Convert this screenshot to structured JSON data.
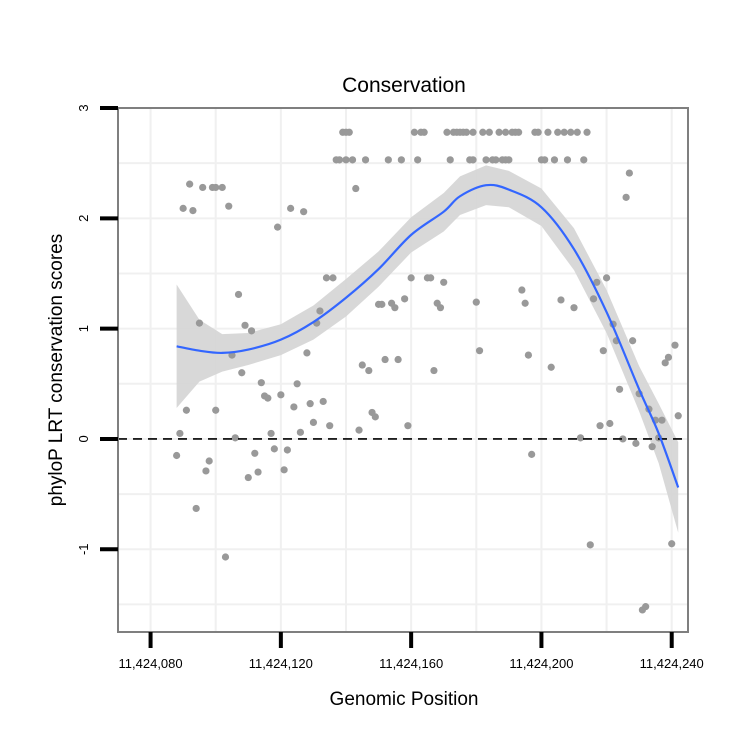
{
  "chart_data": {
    "type": "scatter",
    "title": "Conservation",
    "xlabel": "Genomic Position",
    "ylabel": "phyloP LRT conservation scores",
    "xlim": [
      11424070,
      11424245
    ],
    "ylim": [
      -1.75,
      3.0
    ],
    "x_ticks": [
      11424080,
      11424120,
      11424160,
      11424200,
      11424240
    ],
    "x_tick_labels": [
      "11,424,080",
      "11,424,120",
      "11,424,160",
      "11,424,200",
      "11,424,240"
    ],
    "y_ticks": [
      -1,
      0,
      1,
      2,
      3
    ],
    "y_tick_labels": [
      "-1",
      "0",
      "1",
      "2",
      "3"
    ],
    "grid": true,
    "reference_line": {
      "y": 0,
      "style": "dashed"
    },
    "colors": {
      "points": "#999999",
      "smooth_line": "#3366ff",
      "ribbon": "#d4d4d4",
      "panel_border": "#7f7f7f",
      "grid": "#f0f0f0",
      "reference": "#000000"
    },
    "points": [
      {
        "x": 11424088,
        "y": -0.15
      },
      {
        "x": 11424089,
        "y": 0.05
      },
      {
        "x": 11424090,
        "y": 2.09
      },
      {
        "x": 11424091,
        "y": 0.26
      },
      {
        "x": 11424092,
        "y": 2.31
      },
      {
        "x": 11424093,
        "y": 2.07
      },
      {
        "x": 11424094,
        "y": -0.63
      },
      {
        "x": 11424095,
        "y": 1.05
      },
      {
        "x": 11424096,
        "y": 2.28
      },
      {
        "x": 11424097,
        "y": -0.29
      },
      {
        "x": 11424098,
        "y": -0.2
      },
      {
        "x": 11424099,
        "y": 2.28
      },
      {
        "x": 11424100,
        "y": 0.26
      },
      {
        "x": 11424100,
        "y": 2.28
      },
      {
        "x": 11424102,
        "y": 2.28
      },
      {
        "x": 11424103,
        "y": -1.07
      },
      {
        "x": 11424104,
        "y": 2.11
      },
      {
        "x": 11424105,
        "y": 0.76
      },
      {
        "x": 11424106,
        "y": 0.01
      },
      {
        "x": 11424107,
        "y": 1.31
      },
      {
        "x": 11424108,
        "y": 0.6
      },
      {
        "x": 11424109,
        "y": 1.03
      },
      {
        "x": 11424110,
        "y": -0.35
      },
      {
        "x": 11424111,
        "y": 0.98
      },
      {
        "x": 11424112,
        "y": -0.13
      },
      {
        "x": 11424113,
        "y": -0.3
      },
      {
        "x": 11424114,
        "y": 0.51
      },
      {
        "x": 11424115,
        "y": 0.39
      },
      {
        "x": 11424116,
        "y": 0.37
      },
      {
        "x": 11424117,
        "y": 0.05
      },
      {
        "x": 11424118,
        "y": -0.09
      },
      {
        "x": 11424119,
        "y": 1.92
      },
      {
        "x": 11424120,
        "y": 0.4
      },
      {
        "x": 11424121,
        "y": -0.28
      },
      {
        "x": 11424122,
        "y": -0.1
      },
      {
        "x": 11424123,
        "y": 2.09
      },
      {
        "x": 11424124,
        "y": 0.29
      },
      {
        "x": 11424125,
        "y": 0.5
      },
      {
        "x": 11424126,
        "y": 0.06
      },
      {
        "x": 11424127,
        "y": 2.06
      },
      {
        "x": 11424128,
        "y": 0.78
      },
      {
        "x": 11424129,
        "y": 0.32
      },
      {
        "x": 11424130,
        "y": 0.15
      },
      {
        "x": 11424131,
        "y": 1.05
      },
      {
        "x": 11424132,
        "y": 1.16
      },
      {
        "x": 11424133,
        "y": 0.34
      },
      {
        "x": 11424134,
        "y": 1.46
      },
      {
        "x": 11424135,
        "y": 0.12
      },
      {
        "x": 11424136,
        "y": 1.46
      },
      {
        "x": 11424137,
        "y": 2.53
      },
      {
        "x": 11424138,
        "y": 2.53
      },
      {
        "x": 11424139,
        "y": 2.78
      },
      {
        "x": 11424140,
        "y": 2.53
      },
      {
        "x": 11424140,
        "y": 2.78
      },
      {
        "x": 11424141,
        "y": 2.78
      },
      {
        "x": 11424142,
        "y": 2.53
      },
      {
        "x": 11424143,
        "y": 2.27
      },
      {
        "x": 11424144,
        "y": 0.08
      },
      {
        "x": 11424145,
        "y": 0.67
      },
      {
        "x": 11424146,
        "y": 2.53
      },
      {
        "x": 11424147,
        "y": 0.62
      },
      {
        "x": 11424148,
        "y": 0.24
      },
      {
        "x": 11424149,
        "y": 0.2
      },
      {
        "x": 11424150,
        "y": 1.22
      },
      {
        "x": 11424151,
        "y": 1.22
      },
      {
        "x": 11424152,
        "y": 0.72
      },
      {
        "x": 11424153,
        "y": 2.53
      },
      {
        "x": 11424154,
        "y": 1.23
      },
      {
        "x": 11424155,
        "y": 1.19
      },
      {
        "x": 11424156,
        "y": 0.72
      },
      {
        "x": 11424157,
        "y": 2.53
      },
      {
        "x": 11424158,
        "y": 1.27
      },
      {
        "x": 11424159,
        "y": 0.12
      },
      {
        "x": 11424160,
        "y": 1.46
      },
      {
        "x": 11424161,
        "y": 2.78
      },
      {
        "x": 11424162,
        "y": 2.53
      },
      {
        "x": 11424163,
        "y": 2.78
      },
      {
        "x": 11424164,
        "y": 2.78
      },
      {
        "x": 11424165,
        "y": 1.46
      },
      {
        "x": 11424166,
        "y": 1.46
      },
      {
        "x": 11424167,
        "y": 0.62
      },
      {
        "x": 11424168,
        "y": 1.23
      },
      {
        "x": 11424169,
        "y": 1.19
      },
      {
        "x": 11424170,
        "y": 1.42
      },
      {
        "x": 11424171,
        "y": 2.78
      },
      {
        "x": 11424172,
        "y": 2.53
      },
      {
        "x": 11424173,
        "y": 2.78
      },
      {
        "x": 11424174,
        "y": 2.78
      },
      {
        "x": 11424175,
        "y": 2.78
      },
      {
        "x": 11424176,
        "y": 2.78
      },
      {
        "x": 11424177,
        "y": 2.78
      },
      {
        "x": 11424178,
        "y": 2.53
      },
      {
        "x": 11424179,
        "y": 2.53
      },
      {
        "x": 11424179,
        "y": 2.78
      },
      {
        "x": 11424180,
        "y": 1.24
      },
      {
        "x": 11424181,
        "y": 0.8
      },
      {
        "x": 11424182,
        "y": 2.78
      },
      {
        "x": 11424183,
        "y": 2.53
      },
      {
        "x": 11424184,
        "y": 2.78
      },
      {
        "x": 11424185,
        "y": 2.53
      },
      {
        "x": 11424186,
        "y": 2.53
      },
      {
        "x": 11424187,
        "y": 2.78
      },
      {
        "x": 11424188,
        "y": 2.53
      },
      {
        "x": 11424189,
        "y": 2.78
      },
      {
        "x": 11424189,
        "y": 2.53
      },
      {
        "x": 11424190,
        "y": 2.53
      },
      {
        "x": 11424191,
        "y": 2.78
      },
      {
        "x": 11424192,
        "y": 2.78
      },
      {
        "x": 11424193,
        "y": 2.78
      },
      {
        "x": 11424194,
        "y": 1.35
      },
      {
        "x": 11424195,
        "y": 1.23
      },
      {
        "x": 11424196,
        "y": 0.76
      },
      {
        "x": 11424197,
        "y": -0.14
      },
      {
        "x": 11424198,
        "y": 2.78
      },
      {
        "x": 11424199,
        "y": 2.78
      },
      {
        "x": 11424200,
        "y": 2.53
      },
      {
        "x": 11424201,
        "y": 2.53
      },
      {
        "x": 11424202,
        "y": 2.78
      },
      {
        "x": 11424203,
        "y": 0.65
      },
      {
        "x": 11424204,
        "y": 2.53
      },
      {
        "x": 11424205,
        "y": 2.78
      },
      {
        "x": 11424206,
        "y": 1.26
      },
      {
        "x": 11424207,
        "y": 2.78
      },
      {
        "x": 11424208,
        "y": 2.53
      },
      {
        "x": 11424209,
        "y": 2.78
      },
      {
        "x": 11424210,
        "y": 1.19
      },
      {
        "x": 11424211,
        "y": 2.78
      },
      {
        "x": 11424212,
        "y": 0.01
      },
      {
        "x": 11424213,
        "y": 2.53
      },
      {
        "x": 11424214,
        "y": 2.78
      },
      {
        "x": 11424215,
        "y": -0.96
      },
      {
        "x": 11424216,
        "y": 1.27
      },
      {
        "x": 11424217,
        "y": 1.42
      },
      {
        "x": 11424218,
        "y": 0.12
      },
      {
        "x": 11424219,
        "y": 0.8
      },
      {
        "x": 11424220,
        "y": 1.46
      },
      {
        "x": 11424221,
        "y": 0.14
      },
      {
        "x": 11424222,
        "y": 1.04
      },
      {
        "x": 11424223,
        "y": 0.89
      },
      {
        "x": 11424224,
        "y": 0.45
      },
      {
        "x": 11424225,
        "y": 0.0
      },
      {
        "x": 11424226,
        "y": 2.19
      },
      {
        "x": 11424227,
        "y": 2.41
      },
      {
        "x": 11424228,
        "y": 0.89
      },
      {
        "x": 11424229,
        "y": -0.04
      },
      {
        "x": 11424230,
        "y": 0.41
      },
      {
        "x": 11424231,
        "y": -1.55
      },
      {
        "x": 11424232,
        "y": -1.52
      },
      {
        "x": 11424233,
        "y": 0.27
      },
      {
        "x": 11424234,
        "y": -0.07
      },
      {
        "x": 11424235,
        "y": 0.17
      },
      {
        "x": 11424236,
        "y": 0.01
      },
      {
        "x": 11424237,
        "y": 0.17
      },
      {
        "x": 11424238,
        "y": 0.69
      },
      {
        "x": 11424239,
        "y": 0.74
      },
      {
        "x": 11424240,
        "y": -0.95
      },
      {
        "x": 11424241,
        "y": 0.85
      },
      {
        "x": 11424242,
        "y": 0.21
      }
    ],
    "smooth_curve": [
      {
        "x": 11424088,
        "y": 0.84,
        "lo": 0.28,
        "hi": 1.4
      },
      {
        "x": 11424095,
        "y": 0.8,
        "lo": 0.52,
        "hi": 1.08
      },
      {
        "x": 11424102,
        "y": 0.78,
        "lo": 0.61,
        "hi": 0.95
      },
      {
        "x": 11424110,
        "y": 0.81,
        "lo": 0.67,
        "hi": 0.96
      },
      {
        "x": 11424120,
        "y": 0.9,
        "lo": 0.76,
        "hi": 1.04
      },
      {
        "x": 11424130,
        "y": 1.06,
        "lo": 0.9,
        "hi": 1.21
      },
      {
        "x": 11424140,
        "y": 1.28,
        "lo": 1.11,
        "hi": 1.45
      },
      {
        "x": 11424150,
        "y": 1.54,
        "lo": 1.38,
        "hi": 1.7
      },
      {
        "x": 11424160,
        "y": 1.85,
        "lo": 1.69,
        "hi": 2.01
      },
      {
        "x": 11424170,
        "y": 2.06,
        "lo": 1.88,
        "hi": 2.23
      },
      {
        "x": 11424175,
        "y": 2.2,
        "lo": 2.03,
        "hi": 2.38
      },
      {
        "x": 11424183,
        "y": 2.3,
        "lo": 2.12,
        "hi": 2.48
      },
      {
        "x": 11424190,
        "y": 2.26,
        "lo": 2.1,
        "hi": 2.43
      },
      {
        "x": 11424200,
        "y": 2.1,
        "lo": 1.93,
        "hi": 2.27
      },
      {
        "x": 11424210,
        "y": 1.72,
        "lo": 1.53,
        "hi": 1.91
      },
      {
        "x": 11424220,
        "y": 1.15,
        "lo": 0.96,
        "hi": 1.35
      },
      {
        "x": 11424230,
        "y": 0.45,
        "lo": 0.25,
        "hi": 0.66
      },
      {
        "x": 11424236,
        "y": 0.05,
        "lo": -0.22,
        "hi": 0.32
      },
      {
        "x": 11424242,
        "y": -0.44,
        "lo": -0.85,
        "hi": -0.03
      }
    ]
  }
}
